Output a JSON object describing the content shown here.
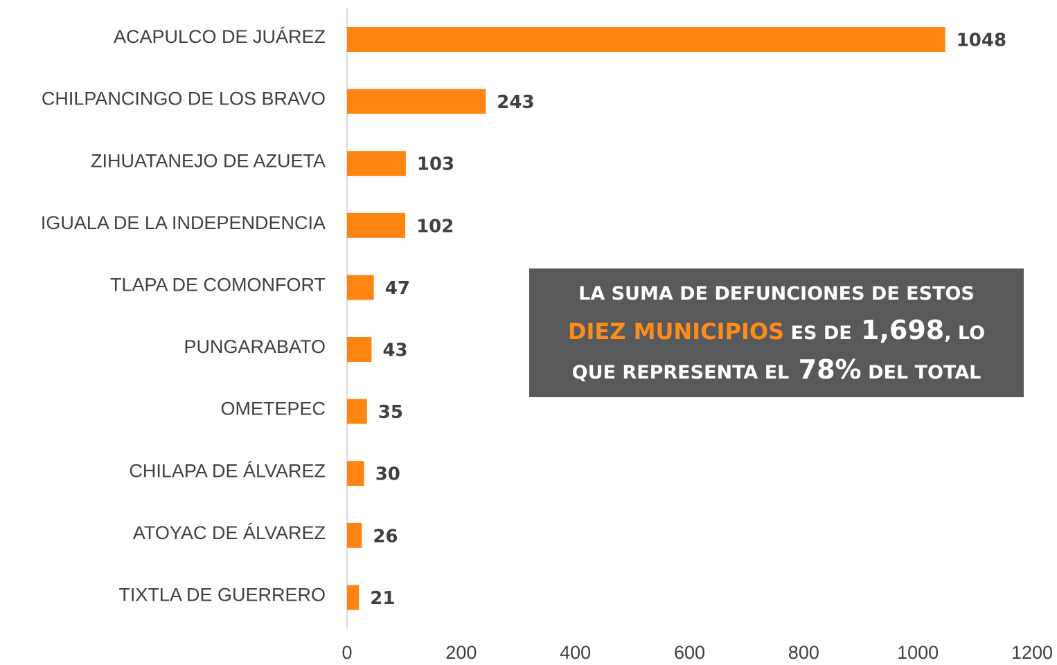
{
  "chart_data": {
    "type": "barh",
    "categories": [
      "ACAPULCO DE JUÁREZ",
      "CHILPANCINGO DE LOS BRAVO",
      "ZIHUATANEJO DE AZUETA",
      "IGUALA DE LA INDEPENDENCIA",
      "TLAPA DE COMONFORT",
      "PUNGARABATO",
      "OMETEPEC",
      "CHILAPA DE ÁLVAREZ",
      "ATOYAC DE ÁLVAREZ",
      "TIXTLA DE  GUERRERO"
    ],
    "values": [
      1048,
      243,
      103,
      102,
      47,
      43,
      35,
      30,
      26,
      21
    ],
    "color": "#ff8512",
    "xlim": [
      0,
      1200
    ],
    "xticks": [
      0,
      200,
      400,
      600,
      800,
      1000,
      1200
    ],
    "grid": false,
    "annotation": {
      "line1": "LA SUMA DE DEFUNCIONES DE ESTOS",
      "highlight": "DIEZ MUNICIPIOS",
      "line2a": "ES DE",
      "sum": "1,698",
      "line2b": ", LO",
      "line3a": "QUE REPRESENTA EL",
      "percent": "78%",
      "line3b": "DEL TOTAL"
    }
  }
}
